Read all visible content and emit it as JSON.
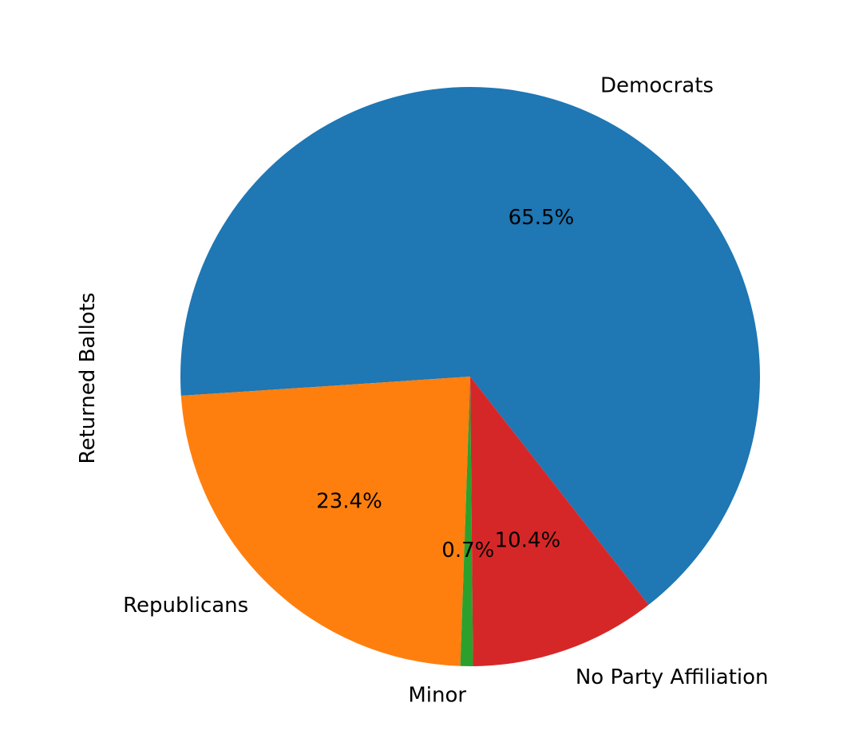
{
  "chart_data": {
    "type": "pie",
    "ylabel": "Returned Ballots",
    "slices": [
      {
        "label": "Democrats",
        "value": 65.5,
        "pct_label": "65.5%",
        "color": "#1f77b4"
      },
      {
        "label": "Republicans",
        "value": 23.4,
        "pct_label": "23.4%",
        "color": "#ff7f0e"
      },
      {
        "label": "Minor",
        "value": 0.7,
        "pct_label": "0.7%",
        "color": "#2ca02c"
      },
      {
        "label": "No Party Affiliation",
        "value": 10.4,
        "pct_label": "10.4%",
        "color": "#d62728"
      }
    ]
  }
}
